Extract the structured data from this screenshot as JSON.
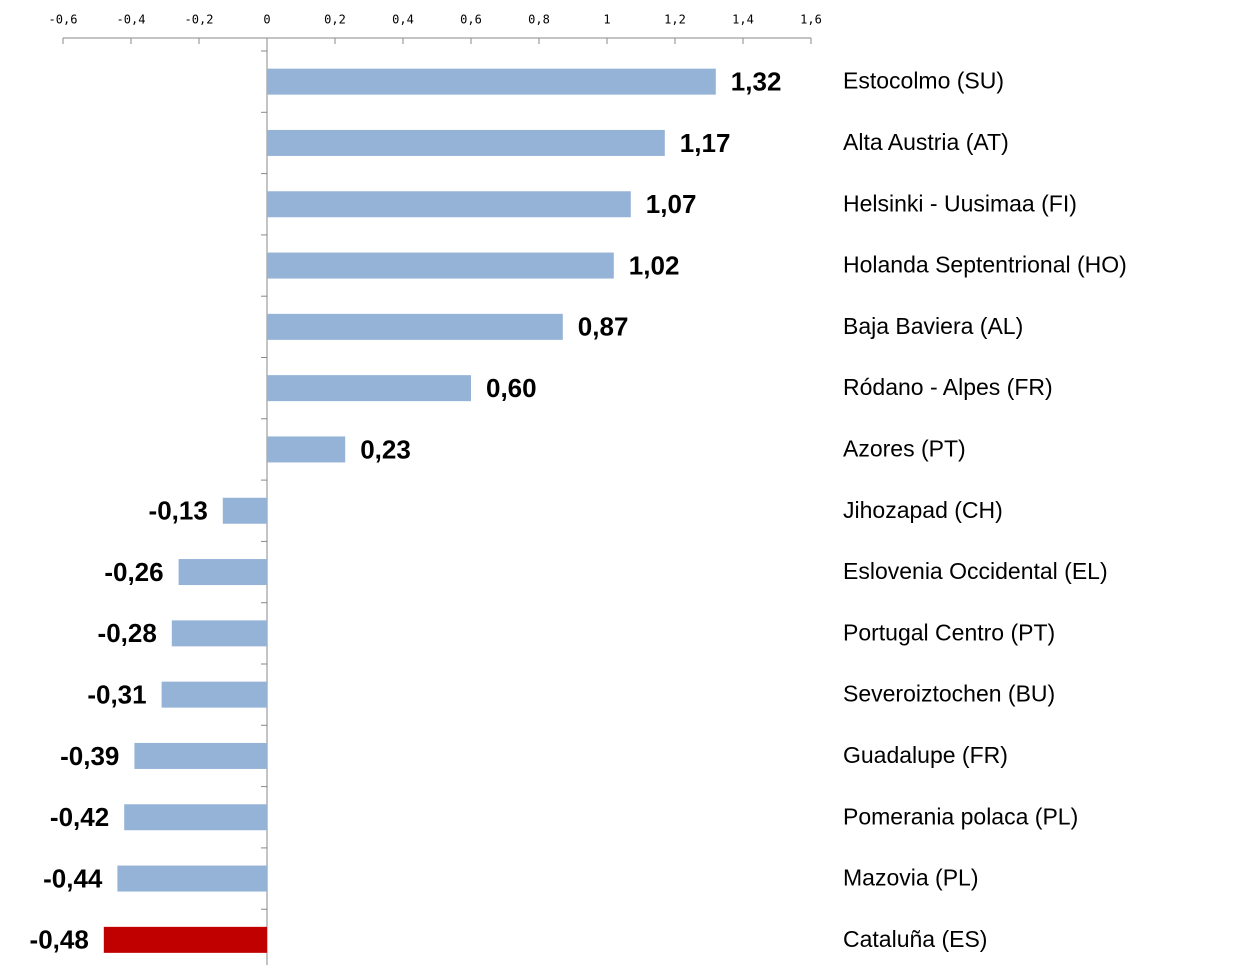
{
  "chart_data": {
    "type": "barh",
    "categories": [
      "Estocolmo (SU)",
      "Alta Austria (AT)",
      "Helsinki - Uusimaa (FI)",
      "Holanda Septentrional (HO)",
      "Baja Baviera (AL)",
      "Ródano - Alpes (FR)",
      "Azores (PT)",
      "Jihozapad (CH)",
      "Eslovenia Occidental (EL)",
      "Portugal Centro (PT)",
      "Severoiztochen (BU)",
      "Guadalupe (FR)",
      "Pomerania polaca (PL)",
      "Mazovia (PL)",
      "Cataluña (ES)"
    ],
    "values": [
      1.32,
      1.17,
      1.07,
      1.02,
      0.87,
      0.6,
      0.23,
      -0.13,
      -0.26,
      -0.28,
      -0.31,
      -0.39,
      -0.42,
      -0.44,
      -0.48
    ],
    "value_labels": [
      "1,32",
      "1,17",
      "1,07",
      "1,02",
      "0,87",
      "0,60",
      "0,23",
      "-0,13",
      "-0,26",
      "-0,28",
      "-0,31",
      "-0,39",
      "-0,42",
      "-0,44",
      "-0,48"
    ],
    "colors": [
      "#95b3d7",
      "#95b3d7",
      "#95b3d7",
      "#95b3d7",
      "#95b3d7",
      "#95b3d7",
      "#95b3d7",
      "#95b3d7",
      "#95b3d7",
      "#95b3d7",
      "#95b3d7",
      "#95b3d7",
      "#95b3d7",
      "#95b3d7",
      "#c00000"
    ],
    "xlim": [
      -0.6,
      1.6
    ],
    "xticks": [
      {
        "value": -0.6,
        "label": "-0,6"
      },
      {
        "value": -0.4,
        "label": "-0,4"
      },
      {
        "value": -0.2,
        "label": "-0,2"
      },
      0,
      {
        "value": 0.2,
        "label": "0,2"
      },
      {
        "value": 0.4,
        "label": "0,4"
      },
      {
        "value": 0.6,
        "label": "0,6"
      },
      {
        "value": 0.8,
        "label": "0,8"
      },
      1,
      {
        "value": 1.2,
        "label": "1,2"
      },
      {
        "value": 1.4,
        "label": "1,4"
      },
      {
        "value": 1.6,
        "label": "1,6"
      }
    ],
    "grid": false
  }
}
